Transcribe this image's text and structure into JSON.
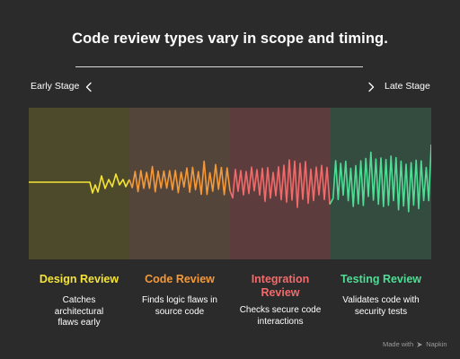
{
  "title": "Code review types vary in scope and timing.",
  "stages": {
    "left_label": "Early Stage",
    "right_label": "Late Stage"
  },
  "columns": [
    {
      "heading": "Design Review",
      "description": "Catches architectural flaws early",
      "color": "#f5e437",
      "panel_color": "#4d4a2c"
    },
    {
      "heading": "Code Review",
      "description": "Finds logic flaws in source code",
      "color": "#f4993a",
      "panel_color": "#54453a"
    },
    {
      "heading": "Integration Review",
      "description": "Checks secure code interactions",
      "color": "#f26a6a",
      "panel_color": "#5c3c3c"
    },
    {
      "heading": "Testing Review",
      "description": "Validates code with security tests",
      "color": "#4fdd96",
      "panel_color": "#344c40"
    }
  ],
  "footer": {
    "made_with": "Made with",
    "brand": "Napkin",
    "icon": "napkin-logo-icon"
  },
  "icons": {
    "left": "chevron-left-icon",
    "right": "chevron-right-icon"
  }
}
